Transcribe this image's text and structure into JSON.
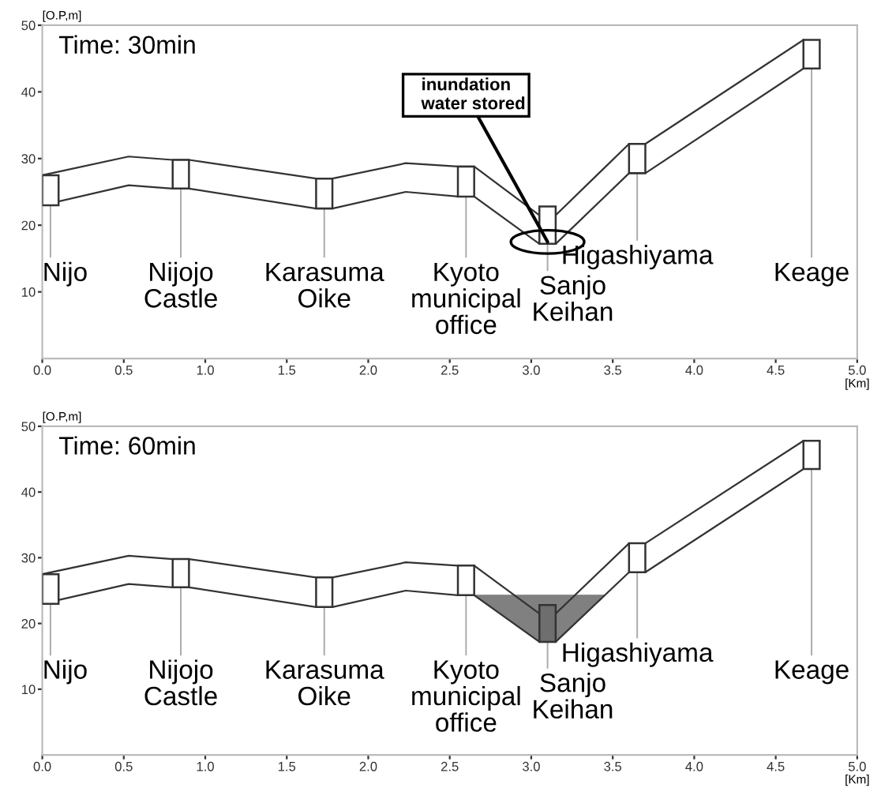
{
  "chart_data": [
    {
      "type": "line",
      "title": "Time: 30min",
      "ylabel": "[O.P,m]",
      "xlabel": "[Km]",
      "xlim": [
        0,
        5
      ],
      "ylim": [
        0,
        50
      ],
      "xticks": [
        {
          "value": 0,
          "label": "0.0"
        },
        {
          "value": 0.5,
          "label": "0.5"
        },
        {
          "value": 1,
          "label": "1.0"
        },
        {
          "value": 1.5,
          "label": "1.5"
        },
        {
          "value": 2,
          "label": "2.0"
        },
        {
          "value": 2.5,
          "label": "2.5"
        },
        {
          "value": 3,
          "label": "3.0"
        },
        {
          "value": 3.5,
          "label": "3.5"
        },
        {
          "value": 4,
          "label": "4.0"
        },
        {
          "value": 4.5,
          "label": "4.5"
        },
        {
          "value": 5,
          "label": "5.0"
        }
      ],
      "yticks": [
        10,
        20,
        30,
        40,
        50
      ],
      "grid": false,
      "legend": false,
      "marker": "none",
      "line_style": "solid",
      "series": [
        {
          "color": "#333333",
          "x": [
            0,
            0.53,
            0.8,
            0.9,
            1.68,
            1.78,
            2.23,
            2.55,
            2.65,
            3.05,
            3.15,
            3.6,
            3.7,
            4.67
          ],
          "values": [
            27.5,
            30.3,
            29.8,
            29.8,
            27,
            27,
            29.3,
            28.8,
            28.8,
            21.5,
            21.5,
            32.2,
            32.2,
            47.8
          ]
        },
        {
          "color": "#333333",
          "x": [
            0,
            0.53,
            0.8,
            0.9,
            1.68,
            1.78,
            2.23,
            2.55,
            2.65,
            3.05,
            3.15,
            3.6,
            3.7,
            4.67
          ],
          "values": [
            23,
            26,
            25.5,
            25.5,
            22.5,
            22.5,
            25,
            24.3,
            24.3,
            17.2,
            17.2,
            27.8,
            27.8,
            43.5
          ]
        },
        {
          "type": "bar",
          "x": [
            0.05,
            0.85,
            1.73,
            2.6,
            3.1,
            3.65,
            4.72
          ],
          "base": [
            23,
            25.5,
            22.5,
            24.3,
            17.2,
            27.8,
            43.5
          ],
          "values": [
            4.5,
            4.3,
            4.5,
            4.5,
            5.6,
            4.4,
            4.3
          ],
          "colors": [
            "#ffffff",
            "#ffffff",
            "#ffffff",
            "#ffffff",
            "#ffffff",
            "#ffffff",
            "#ffffff"
          ]
        }
      ],
      "annotations": [
        {
          "text": "Nijo",
          "x": 0.05,
          "y": 23
        },
        {
          "text": "Nijojo\nCastle",
          "x": 0.85,
          "y": 25.5
        },
        {
          "text": "Karasuma\nOike",
          "x": 1.73,
          "y": 22.5
        },
        {
          "text": "Kyoto\nmunicipal\noffice",
          "x": 2.6,
          "y": 24.3
        },
        {
          "text": "Sanjo\nKeihan",
          "x": 3.1,
          "y": 17.2
        },
        {
          "text": "Higashiyama",
          "x": 3.65,
          "y": 27.8
        },
        {
          "text": "Keage",
          "x": 4.72,
          "y": 43.5
        },
        {
          "text": "inundation\n   water stored",
          "x": 3.1,
          "y": 17.5
        }
      ]
    },
    {
      "type": "line",
      "title": "Time: 60min",
      "ylabel": "[O.P,m]",
      "xlabel": "[Km]",
      "xlim": [
        0,
        5
      ],
      "ylim": [
        0,
        50
      ],
      "xticks": [
        {
          "value": 0,
          "label": "0.0"
        },
        {
          "value": 0.5,
          "label": "0.5"
        },
        {
          "value": 1,
          "label": "1.0"
        },
        {
          "value": 1.5,
          "label": "1.5"
        },
        {
          "value": 2,
          "label": "2.0"
        },
        {
          "value": 2.5,
          "label": "2.5"
        },
        {
          "value": 3,
          "label": "3.0"
        },
        {
          "value": 3.5,
          "label": "3.5"
        },
        {
          "value": 4,
          "label": "4.0"
        },
        {
          "value": 4.5,
          "label": "4.5"
        },
        {
          "value": 5,
          "label": "5.0"
        }
      ],
      "yticks": [
        10,
        20,
        30,
        40,
        50
      ],
      "grid": false,
      "legend": false,
      "marker": "none",
      "line_style": "solid",
      "series": [
        {
          "type": "area",
          "color": "#808080",
          "x": [
            2.65,
            3.05,
            3.15,
            3.45
          ],
          "values": [
            24.3,
            24.3,
            24.3,
            24.3
          ]
        },
        {
          "color": "#333333",
          "x": [
            0,
            0.53,
            0.8,
            0.9,
            1.68,
            1.78,
            2.23,
            2.55,
            2.65,
            3.05,
            3.15,
            3.6,
            3.7,
            4.67
          ],
          "values": [
            27.5,
            30.3,
            29.8,
            29.8,
            27,
            27,
            29.3,
            28.8,
            28.8,
            21.5,
            21.5,
            32.2,
            32.2,
            47.8
          ]
        },
        {
          "color": "#333333",
          "x": [
            0,
            0.53,
            0.8,
            0.9,
            1.68,
            1.78,
            2.23,
            2.55,
            2.65,
            3.05,
            3.15,
            3.6,
            3.7,
            4.67
          ],
          "values": [
            23,
            26,
            25.5,
            25.5,
            22.5,
            22.5,
            25,
            24.3,
            24.3,
            17.2,
            17.2,
            27.8,
            27.8,
            43.5
          ]
        },
        {
          "type": "bar",
          "x": [
            0.05,
            0.85,
            1.73,
            2.6,
            3.1,
            3.65,
            4.72
          ],
          "base": [
            23,
            25.5,
            22.5,
            24.3,
            17.2,
            27.8,
            43.5
          ],
          "values": [
            4.5,
            4.3,
            4.5,
            4.5,
            5.6,
            4.4,
            4.3
          ],
          "colors": [
            "#ffffff",
            "#ffffff",
            "#ffffff",
            "#ffffff",
            "#6e6e6e",
            "#ffffff",
            "#ffffff"
          ]
        }
      ],
      "annotations": [
        {
          "text": "Nijo",
          "x": 0.05,
          "y": 23
        },
        {
          "text": "Nijojo\nCastle",
          "x": 0.85,
          "y": 25.5
        },
        {
          "text": "Karasuma\nOike",
          "x": 1.73,
          "y": 22.5
        },
        {
          "text": "Kyoto\nmunicipal\noffice",
          "x": 2.6,
          "y": 24.3
        },
        {
          "text": "Sanjo\nKeihan",
          "x": 3.1,
          "y": 17.2
        },
        {
          "text": "Higashiyama",
          "x": 3.65,
          "y": 27.8
        },
        {
          "text": "Keage",
          "x": 4.72,
          "y": 43.5
        }
      ]
    }
  ]
}
